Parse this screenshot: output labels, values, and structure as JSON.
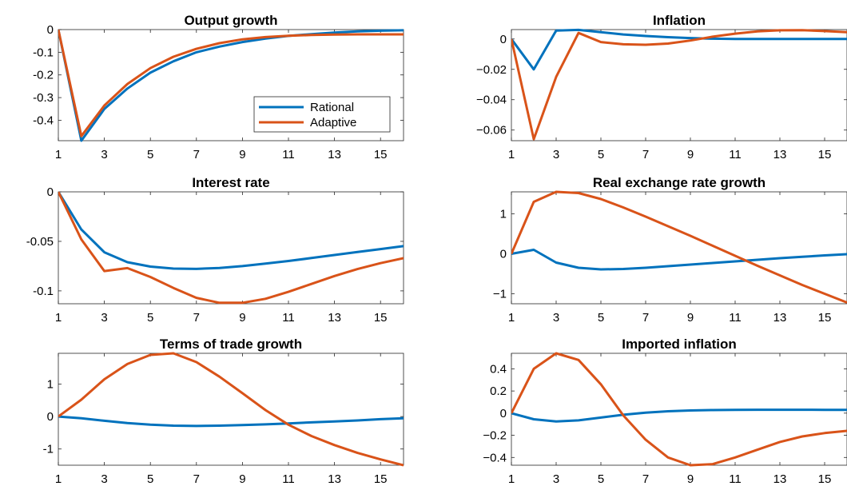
{
  "chart_data": [
    {
      "type": "line",
      "title": "Output growth",
      "x": [
        1,
        2,
        3,
        4,
        5,
        6,
        7,
        8,
        9,
        10,
        11,
        12,
        13,
        14,
        15,
        16
      ],
      "xticks": [
        1,
        3,
        5,
        7,
        9,
        11,
        13,
        15
      ],
      "xlim": [
        1,
        16
      ],
      "ylim": [
        -0.49,
        0.0
      ],
      "yticks": [
        0,
        -0.1,
        -0.2,
        -0.3,
        -0.4
      ],
      "ytick_labels": [
        "0",
        "-0.1",
        "-0.2",
        "-0.3",
        "-0.4"
      ],
      "legend": true,
      "legend_position": "right",
      "series": [
        {
          "name": "Rational",
          "color": "#0072BD",
          "values": [
            0,
            -0.49,
            -0.35,
            -0.26,
            -0.19,
            -0.14,
            -0.1,
            -0.075,
            -0.055,
            -0.04,
            -0.028,
            -0.02,
            -0.013,
            -0.008,
            -0.005,
            -0.003
          ]
        },
        {
          "name": "Adaptive",
          "color": "#D95319",
          "values": [
            0,
            -0.47,
            -0.335,
            -0.24,
            -0.17,
            -0.12,
            -0.085,
            -0.06,
            -0.043,
            -0.033,
            -0.027,
            -0.024,
            -0.022,
            -0.021,
            -0.021,
            -0.021
          ]
        }
      ]
    },
    {
      "type": "line",
      "title": "Inflation",
      "x": [
        1,
        2,
        3,
        4,
        5,
        6,
        7,
        8,
        9,
        10,
        11,
        12,
        13,
        14,
        15,
        16
      ],
      "xticks": [
        1,
        3,
        5,
        7,
        9,
        11,
        13,
        15
      ],
      "xlim": [
        1,
        16
      ],
      "ylim": [
        -0.067,
        0.0062
      ],
      "yticks": [
        0,
        -0.02,
        -0.04,
        -0.06
      ],
      "ytick_labels": [
        "0",
        "−0.02",
        "−0.04",
        "−0.06"
      ],
      "series": [
        {
          "name": "Rational",
          "color": "#0072BD",
          "values": [
            0,
            -0.02,
            0.0055,
            0.006,
            0.0045,
            0.003,
            0.002,
            0.0012,
            0.0006,
            0.0002,
            0,
            0,
            0,
            0,
            0,
            0
          ]
        },
        {
          "name": "Adaptive",
          "color": "#D95319",
          "values": [
            0,
            -0.066,
            -0.025,
            0.004,
            -0.002,
            -0.0035,
            -0.0038,
            -0.003,
            -0.001,
            0.0015,
            0.0035,
            0.005,
            0.0057,
            0.0058,
            0.0052,
            0.0045
          ]
        }
      ]
    },
    {
      "type": "line",
      "title": "Interest rate",
      "x": [
        1,
        2,
        3,
        4,
        5,
        6,
        7,
        8,
        9,
        10,
        11,
        12,
        13,
        14,
        15,
        16
      ],
      "xticks": [
        1,
        3,
        5,
        7,
        9,
        11,
        13,
        15
      ],
      "xlim": [
        1,
        16
      ],
      "ylim": [
        -0.113,
        0.0
      ],
      "yticks": [
        0,
        -0.05,
        -0.1
      ],
      "ytick_labels": [
        "0",
        "-0.05",
        "-0.1"
      ],
      "series": [
        {
          "name": "Rational",
          "color": "#0072BD",
          "values": [
            0,
            -0.038,
            -0.061,
            -0.071,
            -0.0755,
            -0.0775,
            -0.0778,
            -0.0768,
            -0.075,
            -0.0725,
            -0.0698,
            -0.0668,
            -0.0638,
            -0.0608,
            -0.0578,
            -0.0548
          ]
        },
        {
          "name": "Adaptive",
          "color": "#D95319",
          "values": [
            0,
            -0.048,
            -0.08,
            -0.077,
            -0.086,
            -0.097,
            -0.107,
            -0.112,
            -0.112,
            -0.108,
            -0.101,
            -0.093,
            -0.085,
            -0.078,
            -0.072,
            -0.067
          ]
        }
      ]
    },
    {
      "type": "line",
      "title": "Real exchange rate growth",
      "x": [
        1,
        2,
        3,
        4,
        5,
        6,
        7,
        8,
        9,
        10,
        11,
        12,
        13,
        14,
        15,
        16
      ],
      "xticks": [
        1,
        3,
        5,
        7,
        9,
        11,
        13,
        15
      ],
      "xlim": [
        1,
        16
      ],
      "ylim": [
        -1.25,
        1.55
      ],
      "yticks": [
        1,
        0,
        -1
      ],
      "ytick_labels": [
        "1",
        "0",
        "−1"
      ],
      "series": [
        {
          "name": "Rational",
          "color": "#0072BD",
          "values": [
            0,
            0.1,
            -0.22,
            -0.35,
            -0.39,
            -0.38,
            -0.35,
            -0.31,
            -0.27,
            -0.23,
            -0.19,
            -0.15,
            -0.11,
            -0.075,
            -0.04,
            -0.01
          ]
        },
        {
          "name": "Adaptive",
          "color": "#D95319",
          "values": [
            0,
            1.3,
            1.55,
            1.52,
            1.37,
            1.16,
            0.93,
            0.69,
            0.45,
            0.2,
            -0.05,
            -0.3,
            -0.54,
            -0.78,
            -1.0,
            -1.22
          ]
        }
      ]
    },
    {
      "type": "line",
      "title": "Terms of trade growth",
      "x": [
        1,
        2,
        3,
        4,
        5,
        6,
        7,
        8,
        9,
        10,
        11,
        12,
        13,
        14,
        15,
        16
      ],
      "xticks": [
        1,
        3,
        5,
        7,
        9,
        11,
        13,
        15
      ],
      "xlim": [
        1,
        16
      ],
      "ylim": [
        -1.5,
        1.95
      ],
      "yticks": [
        1,
        0,
        -1
      ],
      "ytick_labels": [
        "1",
        "0",
        "-1"
      ],
      "series": [
        {
          "name": "Rational",
          "color": "#0072BD",
          "values": [
            0,
            -0.05,
            -0.13,
            -0.2,
            -0.25,
            -0.28,
            -0.29,
            -0.28,
            -0.26,
            -0.24,
            -0.21,
            -0.18,
            -0.15,
            -0.12,
            -0.08,
            -0.05
          ]
        },
        {
          "name": "Adaptive",
          "color": "#D95319",
          "values": [
            0,
            0.52,
            1.15,
            1.62,
            1.9,
            1.95,
            1.68,
            1.23,
            0.72,
            0.2,
            -0.25,
            -0.6,
            -0.88,
            -1.12,
            -1.32,
            -1.5
          ]
        }
      ]
    },
    {
      "type": "line",
      "title": "Imported inflation",
      "x": [
        1,
        2,
        3,
        4,
        5,
        6,
        7,
        8,
        9,
        10,
        11,
        12,
        13,
        14,
        15,
        16
      ],
      "xticks": [
        1,
        3,
        5,
        7,
        9,
        11,
        13,
        15
      ],
      "xlim": [
        1,
        16
      ],
      "ylim": [
        -0.47,
        0.54
      ],
      "yticks": [
        0.4,
        0.2,
        0,
        -0.2,
        -0.4
      ],
      "ytick_labels": [
        "0.4",
        "0.2",
        "0",
        "−0.2",
        "−0.4"
      ],
      "series": [
        {
          "name": "Rational",
          "color": "#0072BD",
          "values": [
            0,
            -0.055,
            -0.075,
            -0.065,
            -0.04,
            -0.015,
            0.005,
            0.017,
            0.024,
            0.028,
            0.03,
            0.031,
            0.031,
            0.031,
            0.03,
            0.029
          ]
        },
        {
          "name": "Adaptive",
          "color": "#D95319",
          "values": [
            0,
            0.4,
            0.54,
            0.48,
            0.26,
            -0.02,
            -0.24,
            -0.4,
            -0.47,
            -0.46,
            -0.4,
            -0.33,
            -0.26,
            -0.21,
            -0.18,
            -0.16
          ]
        }
      ]
    }
  ]
}
